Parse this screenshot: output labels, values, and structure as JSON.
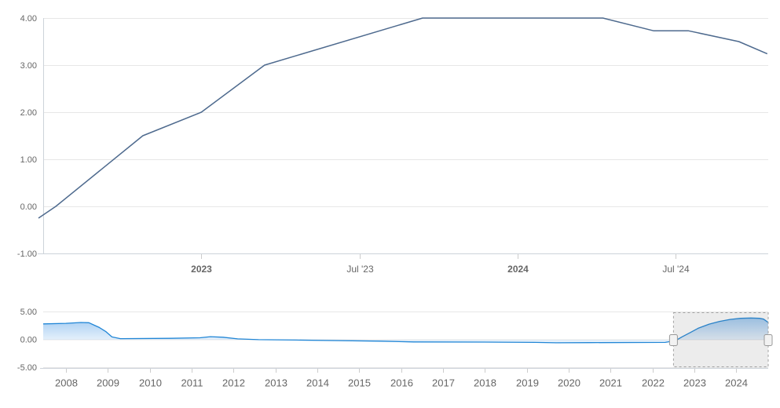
{
  "chart_data": {
    "type": "line",
    "description": "stock-style interest rate chart with range navigator",
    "main_chart": {
      "type": "line",
      "x_domain": [
        2022.5,
        2024.793
      ],
      "y_domain": [
        -1,
        4
      ],
      "grid": true,
      "legend": "none",
      "y_ticks": [
        {
          "value": 4,
          "label": "4.00"
        },
        {
          "value": 3,
          "label": "3.00"
        },
        {
          "value": 2,
          "label": "2.00"
        },
        {
          "value": 1,
          "label": "1.00"
        },
        {
          "value": 0,
          "label": "0.00"
        },
        {
          "value": -1,
          "label": "-1.00"
        }
      ],
      "x_ticks": [
        {
          "value": 2023.0,
          "label": "2023",
          "bold": true
        },
        {
          "value": 2023.5,
          "label": "Jul '23",
          "bold": false
        },
        {
          "value": 2024.0,
          "label": "2024",
          "bold": true
        },
        {
          "value": 2024.5,
          "label": "Jul '24",
          "bold": false
        }
      ],
      "series": {
        "points": [
          [
            2022.485,
            -0.25
          ],
          [
            2022.54,
            0.0
          ],
          [
            2022.815,
            1.5
          ],
          [
            2023.0,
            2.0
          ],
          [
            2023.2,
            3.0
          ],
          [
            2023.7,
            4.0
          ],
          [
            2024.27,
            4.0
          ],
          [
            2024.43,
            3.73
          ],
          [
            2024.54,
            3.73
          ],
          [
            2024.7,
            3.5
          ],
          [
            2024.79,
            3.24
          ]
        ]
      }
    },
    "navigator": {
      "type": "area",
      "x_domain": [
        2007.46,
        2024.76
      ],
      "y_domain": [
        -5,
        5
      ],
      "selected_range": [
        2022.5,
        2024.76
      ],
      "y_ticks": [
        {
          "value": 5,
          "label": "5.00"
        },
        {
          "value": 0,
          "label": "0.00"
        },
        {
          "value": -5,
          "label": "-5.00"
        }
      ],
      "x_ticks": [
        {
          "value": 2008,
          "label": "2008"
        },
        {
          "value": 2009,
          "label": "2009"
        },
        {
          "value": 2010,
          "label": "2010"
        },
        {
          "value": 2011,
          "label": "2011"
        },
        {
          "value": 2012,
          "label": "2012"
        },
        {
          "value": 2013,
          "label": "2013"
        },
        {
          "value": 2014,
          "label": "2014"
        },
        {
          "value": 2015,
          "label": "2015"
        },
        {
          "value": 2016,
          "label": "2016"
        },
        {
          "value": 2017,
          "label": "2017"
        },
        {
          "value": 2018,
          "label": "2018"
        },
        {
          "value": 2019,
          "label": "2019"
        },
        {
          "value": 2020,
          "label": "2020"
        },
        {
          "value": 2021,
          "label": "2021"
        },
        {
          "value": 2022,
          "label": "2022"
        },
        {
          "value": 2023,
          "label": "2023"
        },
        {
          "value": 2024,
          "label": "2024"
        }
      ],
      "series": {
        "points": [
          [
            2007.46,
            2.85
          ],
          [
            2008.0,
            2.95
          ],
          [
            2008.36,
            3.1
          ],
          [
            2008.55,
            3.05
          ],
          [
            2008.68,
            2.6
          ],
          [
            2008.8,
            2.2
          ],
          [
            2008.95,
            1.5
          ],
          [
            2009.1,
            0.5
          ],
          [
            2009.3,
            0.2
          ],
          [
            2010.5,
            0.25
          ],
          [
            2011.2,
            0.35
          ],
          [
            2011.45,
            0.55
          ],
          [
            2011.75,
            0.45
          ],
          [
            2012.1,
            0.15
          ],
          [
            2012.6,
            0.02
          ],
          [
            2013.5,
            -0.05
          ],
          [
            2014.5,
            -0.15
          ],
          [
            2015.5,
            -0.25
          ],
          [
            2016.3,
            -0.4
          ],
          [
            2018.0,
            -0.42
          ],
          [
            2019.2,
            -0.48
          ],
          [
            2019.7,
            -0.55
          ],
          [
            2020.5,
            -0.52
          ],
          [
            2022.3,
            -0.48
          ],
          [
            2022.55,
            -0.15
          ],
          [
            2022.7,
            0.5
          ],
          [
            2022.9,
            1.3
          ],
          [
            2023.1,
            2.1
          ],
          [
            2023.35,
            2.8
          ],
          [
            2023.6,
            3.3
          ],
          [
            2023.85,
            3.65
          ],
          [
            2024.1,
            3.85
          ],
          [
            2024.35,
            3.9
          ],
          [
            2024.55,
            3.85
          ],
          [
            2024.65,
            3.7
          ],
          [
            2024.76,
            3.1
          ]
        ]
      }
    },
    "colors": {
      "main_line": "#4e6a8e",
      "navigator_line": "#2186d6",
      "navigator_fill_top": "rgba(124,181,236,0.85)",
      "navigator_fill_bottom": "rgba(124,181,236,0.18)",
      "gridline": "#e7e7e7",
      "axis_line": "#cdd3da",
      "tick": "#cccccc",
      "label": "#666666",
      "mask_fill": "rgba(110,110,110,0.13)",
      "mask_border": "#a2a2a2",
      "handle_fill": "#f2f2f2",
      "handle_stroke": "#999999"
    }
  }
}
